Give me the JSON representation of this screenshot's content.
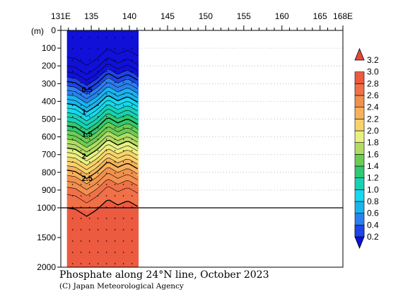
{
  "chart_data": {
    "type": "heatmap",
    "title": "Phosphate along 24°N line, October 2023",
    "credit": "(C) Japan Meteorological Agency",
    "y_unit": "(m)",
    "x_ticks": [
      {
        "value": 131,
        "label": "131E"
      },
      {
        "value": 135,
        "label": "135"
      },
      {
        "value": 140,
        "label": "140"
      },
      {
        "value": 145,
        "label": "145"
      },
      {
        "value": 150,
        "label": "150"
      },
      {
        "value": 155,
        "label": "155"
      },
      {
        "value": 160,
        "label": "160"
      },
      {
        "value": 165,
        "label": "165"
      },
      {
        "value": 168,
        "label": "168E"
      }
    ],
    "xlim": [
      131,
      168
    ],
    "upper_depth_ticks": [
      0,
      100,
      200,
      300,
      400,
      500,
      600,
      700,
      800,
      900,
      1000
    ],
    "lower_depth_ticks": [
      1500,
      2000
    ],
    "ylim": [
      0,
      2000
    ],
    "section_lon_range": [
      131.8,
      141.2
    ],
    "colorbar": {
      "levels": [
        0.2,
        0.4,
        0.6,
        0.8,
        1.0,
        1.2,
        1.4,
        1.6,
        1.8,
        2.0,
        2.2,
        2.4,
        2.6,
        2.8,
        3.0,
        3.2
      ],
      "labels": [
        "0.2",
        "0.4",
        "0.6",
        "0.8",
        "1.0",
        "1.2",
        "1.4",
        "1.6",
        "1.8",
        "2.0",
        "2.2",
        "2.4",
        "2.6",
        "2.8",
        "3.0",
        "3.2"
      ],
      "colors": [
        "#1010d8",
        "#1f44e8",
        "#2a80ee",
        "#1ab4ee",
        "#16d8ee",
        "#1ad0b4",
        "#30c870",
        "#6ccc54",
        "#b0dc64",
        "#e8f080",
        "#f8d26a",
        "#f6b25a",
        "#f2904e",
        "#f07048",
        "#ec5a40",
        "#e84838"
      ]
    },
    "contour_labels": [
      "0.5",
      "1",
      "1.5",
      "2",
      "2.5"
    ],
    "profile_depths": [
      0,
      50,
      100,
      150,
      200,
      250,
      300,
      350,
      400,
      450,
      500,
      550,
      600,
      650,
      700,
      750,
      800,
      850,
      900,
      950,
      1000,
      1200,
      1400,
      1600,
      1800,
      2000
    ],
    "profile_values": [
      0.05,
      0.05,
      0.06,
      0.1,
      0.2,
      0.35,
      0.55,
      0.75,
      0.95,
      1.15,
      1.35,
      1.55,
      1.75,
      1.95,
      2.15,
      2.35,
      2.55,
      2.7,
      2.85,
      2.95,
      3.0,
      3.05,
      3.08,
      3.1,
      3.1,
      3.1
    ]
  }
}
